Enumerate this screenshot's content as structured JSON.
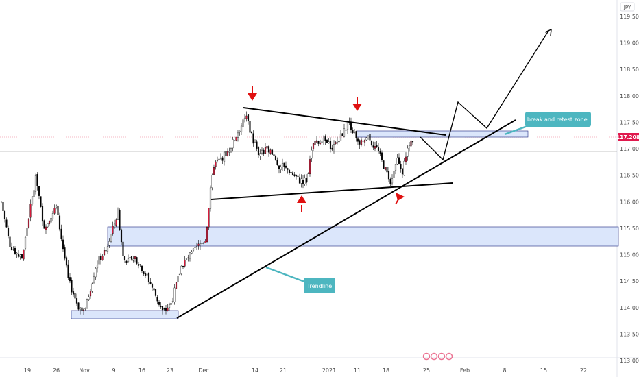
{
  "chart_data": {
    "type": "candlestick",
    "symbol_currency": "JPY",
    "last_price": "117.208",
    "ylim": [
      113.0,
      119.8
    ],
    "y_ticks": [
      "113.000",
      "113.500",
      "114.000",
      "114.500",
      "115.000",
      "115.500",
      "116.000",
      "116.500",
      "117.000",
      "117.500",
      "118.000",
      "118.500",
      "119.000",
      "119.500"
    ],
    "x_ticks": [
      "19",
      "26",
      "Nov",
      "9",
      "16",
      "23",
      "Dec",
      "14",
      "21",
      "2021",
      "11",
      "18",
      "25",
      "Feb",
      "8",
      "15",
      "22"
    ],
    "annotations": {
      "retest_label": "break and retest zone.",
      "trendline_label": "Trendline"
    },
    "colors": {
      "up": "#ffffff",
      "down": "#000000",
      "wick": "#000000",
      "bull_body_accent": "#d81b3c",
      "zone_fill": "#dbe6fb",
      "callout": "#4db6c0",
      "price_tag": "#e0194d",
      "arrow_red": "#e01010"
    }
  }
}
